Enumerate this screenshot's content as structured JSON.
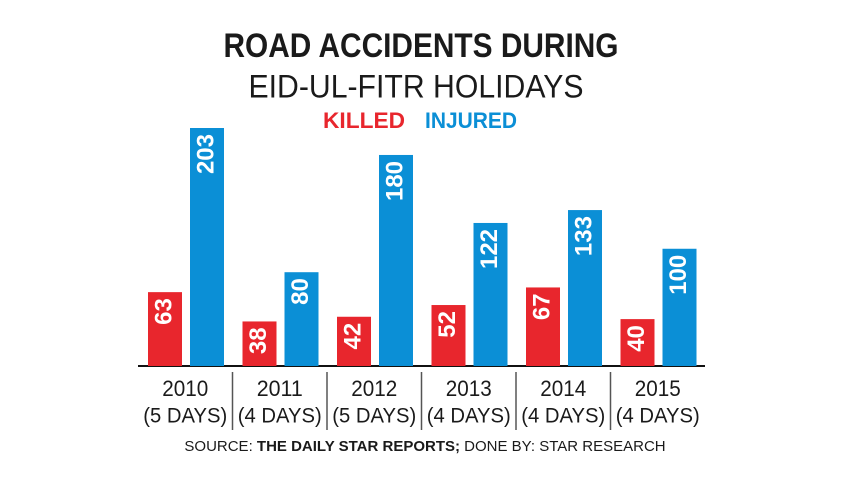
{
  "chart_data": {
    "type": "bar",
    "title": "ROAD ACCIDENTS DURING",
    "subtitle": "EID-UL-FITR HOLIDAYS",
    "categories": [
      "2010",
      "2011",
      "2012",
      "2013",
      "2014",
      "2015"
    ],
    "category_sublabels": [
      "(5 DAYS)",
      "(4 DAYS)",
      "(5 DAYS)",
      "(4 DAYS)",
      "(4 DAYS)",
      "(4 DAYS)"
    ],
    "series": [
      {
        "name": "KILLED",
        "color": "#e8262d",
        "values": [
          63,
          38,
          42,
          52,
          67,
          40
        ]
      },
      {
        "name": "INJURED",
        "color": "#0b8fd6",
        "values": [
          203,
          80,
          180,
          122,
          133,
          100
        ]
      }
    ],
    "source_prefix": "SOURCE:",
    "source_name": "THE DAILY STAR REPORTS;",
    "credit": "DONE BY: STAR RESEARCH"
  }
}
